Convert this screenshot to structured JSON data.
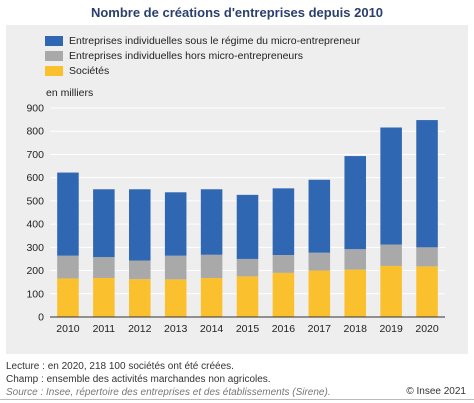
{
  "chart_data": {
    "type": "bar",
    "stacked": true,
    "title": "Nombre de créations d'entreprises depuis 2010",
    "ylabel": "en milliers",
    "categories": [
      "2010",
      "2011",
      "2012",
      "2013",
      "2014",
      "2015",
      "2016",
      "2017",
      "2018",
      "2019",
      "2020"
    ],
    "series": [
      {
        "name": "Entreprises individuelles sous le régime du micro-entrepreneur",
        "color": "#3067b3",
        "values": [
          358,
          292,
          307,
          273,
          282,
          276,
          287,
          314,
          401,
          504,
          548
        ]
      },
      {
        "name": "Entreprises individuelles hors micro-entrepreneurs",
        "color": "#a9a9a9",
        "values": [
          98,
          90,
          80,
          102,
          100,
          75,
          77,
          77,
          88,
          92,
          82
        ]
      },
      {
        "name": "Sociétés",
        "color": "#fbc02d",
        "values": [
          166,
          168,
          163,
          162,
          168,
          175,
          190,
          200,
          204,
          220,
          218
        ]
      }
    ],
    "legend_order": [
      0,
      1,
      2
    ],
    "stack_order_bottom_to_top": [
      2,
      1,
      0
    ],
    "ylim": [
      0,
      900
    ],
    "yticks": [
      "0",
      "100",
      "200",
      "300",
      "400",
      "500",
      "600",
      "700",
      "800",
      "900"
    ],
    "grid": true,
    "legend_position": "top-left"
  },
  "notes": {
    "lecture": "Lecture : en 2020, 218 100 sociétés ont été créées.",
    "champ": "Champ : ensemble des activités marchandes non agricoles.",
    "source": "Source : Insee, répertoire des entreprises et des établissements (Sirene).",
    "credit": "© Insee 2021"
  }
}
